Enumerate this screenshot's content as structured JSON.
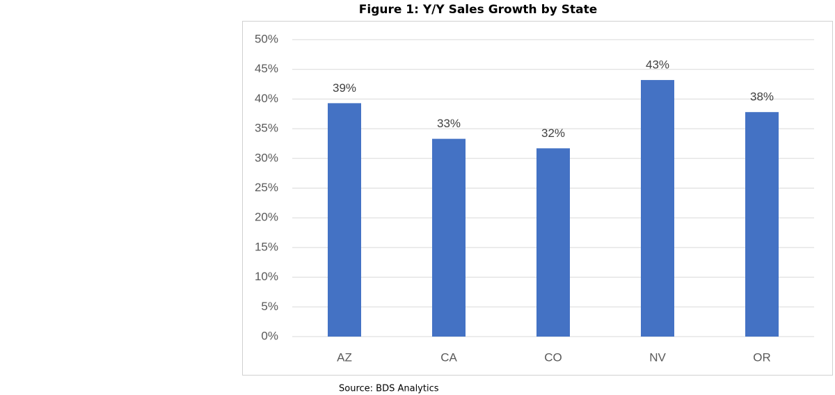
{
  "chart_data": {
    "type": "bar",
    "title": "Figure 1: Y/Y Sales Growth by State",
    "categories": [
      "AZ",
      "CA",
      "CO",
      "NV",
      "OR"
    ],
    "values": [
      39.3,
      33.3,
      31.7,
      43.2,
      37.8
    ],
    "value_labels": [
      "39%",
      "33%",
      "32%",
      "43%",
      "38%"
    ],
    "color": "#4472c4",
    "ylim": [
      0,
      50
    ],
    "yticks": [
      {
        "value": 0,
        "label": "0%"
      },
      {
        "value": 5,
        "label": "5%"
      },
      {
        "value": 10,
        "label": "10%"
      },
      {
        "value": 15,
        "label": "15%"
      },
      {
        "value": 20,
        "label": "20%"
      },
      {
        "value": 25,
        "label": "25%"
      },
      {
        "value": 30,
        "label": "30%"
      },
      {
        "value": 35,
        "label": "35%"
      },
      {
        "value": 40,
        "label": "40%"
      },
      {
        "value": 45,
        "label": "45%"
      },
      {
        "value": 50,
        "label": "50%"
      }
    ],
    "grid": true,
    "source": "Source: BDS Analytics"
  }
}
